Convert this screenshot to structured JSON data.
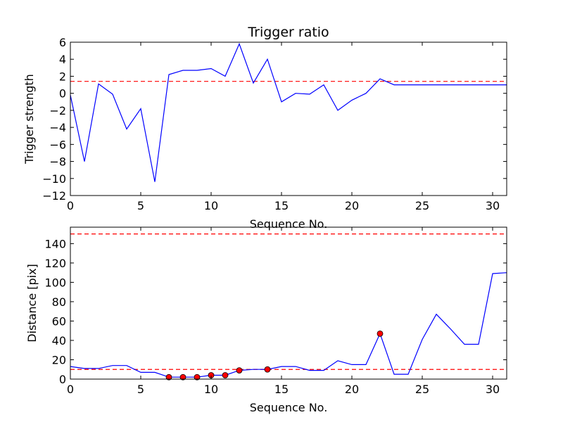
{
  "chart_data": [
    {
      "type": "line",
      "title": "Trigger ratio",
      "xlabel": "Sequence No.",
      "ylabel": "Trigger strength",
      "xlim": [
        0,
        31
      ],
      "ylim": [
        -12,
        6
      ],
      "xticks": [
        0,
        5,
        10,
        15,
        20,
        25,
        30
      ],
      "yticks": [
        -12,
        -10,
        -8,
        -6,
        -4,
        -2,
        0,
        2,
        4,
        6
      ],
      "ytick_labels": [
        "−12",
        "−10",
        "−8",
        "−6",
        "−4",
        "−2",
        "0",
        "2",
        "4",
        "6"
      ],
      "grid": false,
      "series": [
        {
          "color": "#0000ff",
          "style": "solid",
          "x": [
            0,
            1,
            2,
            3,
            4,
            5,
            6,
            7,
            8,
            9,
            10,
            11,
            12,
            13,
            14,
            15,
            16,
            17,
            18,
            19,
            20,
            21,
            22,
            23,
            24,
            25,
            26,
            27,
            28,
            29,
            30,
            31
          ],
          "y": [
            -0.2,
            -8.0,
            1.1,
            -0.1,
            -4.2,
            -1.8,
            -10.4,
            2.2,
            2.7,
            2.7,
            2.9,
            2.0,
            5.8,
            1.2,
            4.0,
            -1.0,
            0.0,
            -0.1,
            1.0,
            -2.0,
            -0.8,
            0.0,
            1.7,
            1.0,
            1.0,
            1.0,
            1.0,
            1.0,
            1.0,
            1.0,
            1.0,
            1.0
          ]
        }
      ],
      "hlines": [
        {
          "y": 1.4,
          "color": "#ff0000",
          "style": "dashed"
        }
      ]
    },
    {
      "type": "line",
      "title": "",
      "xlabel": "Sequence No.",
      "ylabel": "Distance [pix]",
      "xlim": [
        0,
        31
      ],
      "ylim": [
        0,
        157
      ],
      "xticks": [
        0,
        5,
        10,
        15,
        20,
        25,
        30
      ],
      "yticks": [
        0,
        20,
        40,
        60,
        80,
        100,
        120,
        140
      ],
      "ytick_labels": [
        "0",
        "20",
        "40",
        "60",
        "80",
        "100",
        "120",
        "140"
      ],
      "grid": false,
      "series": [
        {
          "color": "#0000ff",
          "style": "solid",
          "x": [
            0,
            1,
            2,
            3,
            4,
            5,
            6,
            7,
            8,
            9,
            10,
            11,
            12,
            13,
            14,
            15,
            16,
            17,
            18,
            19,
            20,
            21,
            22,
            23,
            24,
            25,
            26,
            27,
            28,
            29,
            30,
            31
          ],
          "y": [
            13,
            11,
            11,
            14,
            14,
            7,
            7,
            2,
            2,
            2,
            4,
            4,
            9,
            10,
            10,
            13,
            13,
            9,
            9,
            19,
            15,
            15,
            47,
            5,
            5,
            41,
            67,
            52,
            36,
            36,
            109,
            110
          ]
        }
      ],
      "markers": {
        "color": "#ff0000",
        "x": [
          7,
          8,
          9,
          10,
          11,
          12,
          14,
          22
        ],
        "y": [
          2,
          2,
          2,
          4,
          4,
          9,
          10,
          47
        ]
      },
      "hlines": [
        {
          "y": 10,
          "color": "#ff0000",
          "style": "dashed"
        },
        {
          "y": 150,
          "color": "#ff0000",
          "style": "dashed"
        }
      ]
    }
  ]
}
